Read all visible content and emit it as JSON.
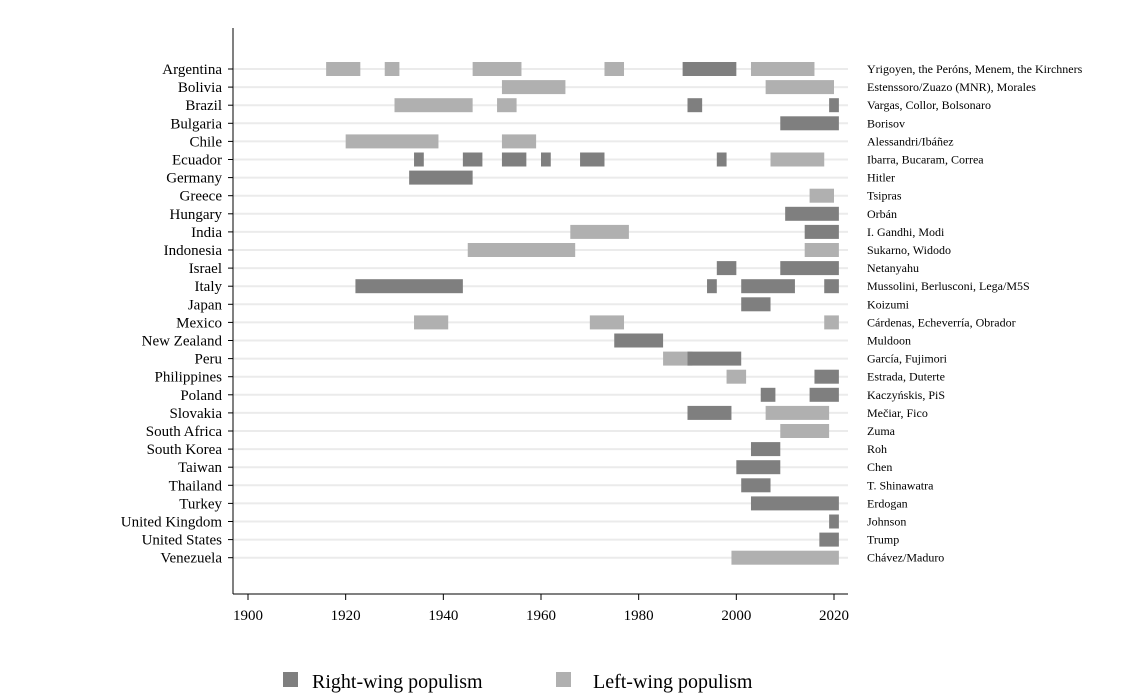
{
  "chart_data": {
    "type": "bar",
    "subtype": "timeline",
    "title": "",
    "xlabel": "",
    "ylabel": "",
    "xlim": [
      1897,
      2024
    ],
    "xticks": [
      1900,
      1920,
      1940,
      1960,
      1980,
      2000,
      2020
    ],
    "grid": true,
    "legend_position": "bottom",
    "colors": {
      "Right": "#7f7f7f",
      "Left": "#b0b0b0",
      "grid": "#ebebeb"
    },
    "legend": [
      {
        "key": "Right",
        "label": "Right-wing populism"
      },
      {
        "key": "Left",
        "label": "Left-wing populism"
      }
    ],
    "rows": [
      {
        "country": "Argentina",
        "leaders": "Yrigoyen, the Peróns, Menem, the Kirchners",
        "episodes": [
          {
            "start": 1916,
            "end": 1922,
            "type": "Left"
          },
          {
            "start": 1928,
            "end": 1930,
            "type": "Left"
          },
          {
            "start": 1946,
            "end": 1955,
            "type": "Left"
          },
          {
            "start": 1973,
            "end": 1976,
            "type": "Left"
          },
          {
            "start": 1989,
            "end": 1999,
            "type": "Right"
          },
          {
            "start": 2003,
            "end": 2015,
            "type": "Left"
          }
        ]
      },
      {
        "country": "Bolivia",
        "leaders": "Estenssoro/Zuazo (MNR), Morales",
        "episodes": [
          {
            "start": 1952,
            "end": 1964,
            "type": "Left"
          },
          {
            "start": 2006,
            "end": 2019,
            "type": "Left"
          }
        ]
      },
      {
        "country": "Brazil",
        "leaders": "Vargas, Collor, Bolsonaro",
        "episodes": [
          {
            "start": 1930,
            "end": 1945,
            "type": "Left"
          },
          {
            "start": 1951,
            "end": 1954,
            "type": "Left"
          },
          {
            "start": 1990,
            "end": 1992,
            "type": "Right"
          },
          {
            "start": 2019,
            "end": 2020,
            "type": "Right"
          }
        ]
      },
      {
        "country": "Bulgaria",
        "leaders": "Borisov",
        "episodes": [
          {
            "start": 2009,
            "end": 2020,
            "type": "Right"
          }
        ]
      },
      {
        "country": "Chile",
        "leaders": "Alessandri/Ibáñez",
        "episodes": [
          {
            "start": 1920,
            "end": 1938,
            "type": "Left"
          },
          {
            "start": 1952,
            "end": 1958,
            "type": "Left"
          }
        ]
      },
      {
        "country": "Ecuador",
        "leaders": "Ibarra, Bucaram, Correa",
        "episodes": [
          {
            "start": 1934,
            "end": 1935,
            "type": "Right"
          },
          {
            "start": 1944,
            "end": 1947,
            "type": "Right"
          },
          {
            "start": 1952,
            "end": 1956,
            "type": "Right"
          },
          {
            "start": 1960,
            "end": 1961,
            "type": "Right"
          },
          {
            "start": 1968,
            "end": 1972,
            "type": "Right"
          },
          {
            "start": 1996,
            "end": 1997,
            "type": "Right"
          },
          {
            "start": 2007,
            "end": 2017,
            "type": "Left"
          }
        ]
      },
      {
        "country": "Germany",
        "leaders": "Hitler",
        "episodes": [
          {
            "start": 1933,
            "end": 1945,
            "type": "Right"
          }
        ]
      },
      {
        "country": "Greece",
        "leaders": "Tsipras",
        "episodes": [
          {
            "start": 2015,
            "end": 2019,
            "type": "Left"
          }
        ]
      },
      {
        "country": "Hungary",
        "leaders": "Orbán",
        "episodes": [
          {
            "start": 2010,
            "end": 2020,
            "type": "Right"
          }
        ]
      },
      {
        "country": "India",
        "leaders": "I. Gandhi, Modi",
        "episodes": [
          {
            "start": 1966,
            "end": 1977,
            "type": "Left"
          },
          {
            "start": 2014,
            "end": 2020,
            "type": "Right"
          }
        ]
      },
      {
        "country": "Indonesia",
        "leaders": "Sukarno, Widodo",
        "episodes": [
          {
            "start": 1945,
            "end": 1966,
            "type": "Left"
          },
          {
            "start": 2014,
            "end": 2020,
            "type": "Left"
          }
        ]
      },
      {
        "country": "Israel",
        "leaders": "Netanyahu",
        "episodes": [
          {
            "start": 1996,
            "end": 1999,
            "type": "Right"
          },
          {
            "start": 2009,
            "end": 2020,
            "type": "Right"
          }
        ]
      },
      {
        "country": "Italy",
        "leaders": "Mussolini, Berlusconi, Lega/M5S",
        "episodes": [
          {
            "start": 1922,
            "end": 1943,
            "type": "Right"
          },
          {
            "start": 1994,
            "end": 1995,
            "type": "Right"
          },
          {
            "start": 2001,
            "end": 2011,
            "type": "Right"
          },
          {
            "start": 2018,
            "end": 2020,
            "type": "Right"
          }
        ]
      },
      {
        "country": "Japan",
        "leaders": "Koizumi",
        "episodes": [
          {
            "start": 2001,
            "end": 2006,
            "type": "Right"
          }
        ]
      },
      {
        "country": "Mexico",
        "leaders": "Cárdenas, Echeverría, Obrador",
        "episodes": [
          {
            "start": 1934,
            "end": 1940,
            "type": "Left"
          },
          {
            "start": 1970,
            "end": 1976,
            "type": "Left"
          },
          {
            "start": 2018,
            "end": 2020,
            "type": "Left"
          }
        ]
      },
      {
        "country": "New Zealand",
        "leaders": "Muldoon",
        "episodes": [
          {
            "start": 1975,
            "end": 1984,
            "type": "Right"
          }
        ]
      },
      {
        "country": "Peru",
        "leaders": "García, Fujimori",
        "episodes": [
          {
            "start": 1985,
            "end": 1990,
            "type": "Left"
          },
          {
            "start": 1990,
            "end": 2000,
            "type": "Right"
          }
        ]
      },
      {
        "country": "Philippines",
        "leaders": "Estrada, Duterte",
        "episodes": [
          {
            "start": 1998,
            "end": 2001,
            "type": "Left"
          },
          {
            "start": 2016,
            "end": 2020,
            "type": "Right"
          }
        ]
      },
      {
        "country": "Poland",
        "leaders": "Kaczyńskis, PiS",
        "episodes": [
          {
            "start": 2005,
            "end": 2007,
            "type": "Right"
          },
          {
            "start": 2015,
            "end": 2020,
            "type": "Right"
          }
        ]
      },
      {
        "country": "Slovakia",
        "leaders": "Mečiar, Fico",
        "episodes": [
          {
            "start": 1990,
            "end": 1998,
            "type": "Right"
          },
          {
            "start": 2006,
            "end": 2018,
            "type": "Left"
          }
        ]
      },
      {
        "country": "South Africa",
        "leaders": "Zuma",
        "episodes": [
          {
            "start": 2009,
            "end": 2018,
            "type": "Left"
          }
        ]
      },
      {
        "country": "South Korea",
        "leaders": "Roh",
        "episodes": [
          {
            "start": 2003,
            "end": 2008,
            "type": "Right"
          }
        ]
      },
      {
        "country": "Taiwan",
        "leaders": "Chen",
        "episodes": [
          {
            "start": 2000,
            "end": 2008,
            "type": "Right"
          }
        ]
      },
      {
        "country": "Thailand",
        "leaders": "T. Shinawatra",
        "episodes": [
          {
            "start": 2001,
            "end": 2006,
            "type": "Right"
          }
        ]
      },
      {
        "country": "Turkey",
        "leaders": "Erdogan",
        "episodes": [
          {
            "start": 2003,
            "end": 2020,
            "type": "Right"
          }
        ]
      },
      {
        "country": "United Kingdom",
        "leaders": "Johnson",
        "episodes": [
          {
            "start": 2019,
            "end": 2020,
            "type": "Right"
          }
        ]
      },
      {
        "country": "United States",
        "leaders": "Trump",
        "episodes": [
          {
            "start": 2017,
            "end": 2020,
            "type": "Right"
          }
        ]
      },
      {
        "country": "Venezuela",
        "leaders": "Chávez/Maduro",
        "episodes": [
          {
            "start": 1999,
            "end": 2020,
            "type": "Left"
          }
        ]
      }
    ]
  }
}
